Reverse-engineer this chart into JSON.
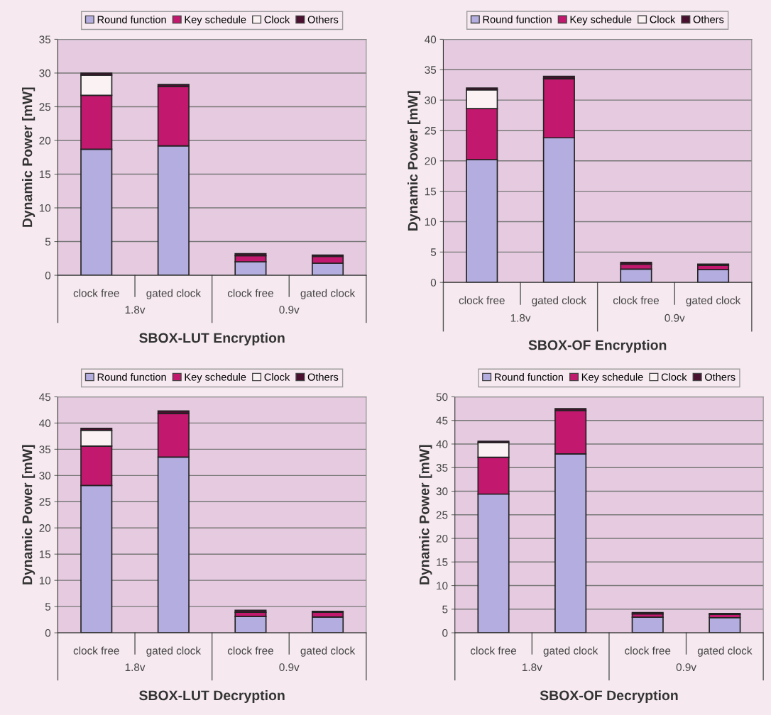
{
  "chart_data": [
    {
      "type": "bar",
      "stacked": true,
      "xlabel": "SBOX-LUT Encryption",
      "ylabel": "Dynamic Power [mW]",
      "categories": [
        "clock free",
        "gated clock",
        "clock free",
        "gated clock"
      ],
      "annotations": [
        "1.8v",
        "0.9v"
      ],
      "ylim": [
        0,
        35
      ],
      "yticks": [
        0,
        5,
        10,
        15,
        20,
        25,
        30,
        35
      ],
      "grid": "y",
      "legend": "top",
      "series": [
        {
          "name": "Round function",
          "color": "#b4aee0",
          "values": [
            18.7,
            19.2,
            2.0,
            1.8
          ]
        },
        {
          "name": "Key schedule",
          "color": "#c2186e",
          "values": [
            8.0,
            8.8,
            0.9,
            1.0
          ]
        },
        {
          "name": "Clock",
          "color": "#fbf3f3",
          "values": [
            3.0,
            0,
            0,
            0
          ]
        },
        {
          "name": "Others",
          "color": "#4a1030",
          "values": [
            0.3,
            0.3,
            0.3,
            0.2
          ]
        }
      ]
    },
    {
      "type": "bar",
      "stacked": true,
      "xlabel": "SBOX-OF Encryption",
      "ylabel": "Dynamic Power [mW]",
      "categories": [
        "clock free",
        "gated clock",
        "clock free",
        "gated clock"
      ],
      "annotations": [
        "1.8v",
        "0.9v"
      ],
      "ylim": [
        0,
        40
      ],
      "yticks": [
        0,
        5,
        10,
        15,
        20,
        25,
        30,
        35,
        40
      ],
      "grid": "y",
      "legend": "top",
      "series": [
        {
          "name": "Round function",
          "color": "#b4aee0",
          "values": [
            20.2,
            23.8,
            2.2,
            2.1
          ]
        },
        {
          "name": "Key schedule",
          "color": "#c2186e",
          "values": [
            8.4,
            9.7,
            0.8,
            0.7
          ]
        },
        {
          "name": "Clock",
          "color": "#fbf3f3",
          "values": [
            3.1,
            0,
            0,
            0
          ]
        },
        {
          "name": "Others",
          "color": "#4a1030",
          "values": [
            0.3,
            0.4,
            0.3,
            0.2
          ]
        }
      ]
    },
    {
      "type": "bar",
      "stacked": true,
      "xlabel": "SBOX-LUT Decryption",
      "ylabel": "Dynamic Power [mW]",
      "categories": [
        "clock free",
        "gated clock",
        "clock free",
        "gated clock"
      ],
      "annotations": [
        "1.8v",
        "0.9v"
      ],
      "ylim": [
        0,
        45
      ],
      "yticks": [
        0,
        5,
        10,
        15,
        20,
        25,
        30,
        35,
        40,
        45
      ],
      "grid": "y",
      "legend": "top",
      "series": [
        {
          "name": "Round function",
          "color": "#b4aee0",
          "values": [
            28.1,
            33.5,
            3.1,
            3.0
          ]
        },
        {
          "name": "Key schedule",
          "color": "#c2186e",
          "values": [
            7.5,
            8.3,
            0.8,
            0.9
          ]
        },
        {
          "name": "Clock",
          "color": "#fbf3f3",
          "values": [
            3.0,
            0,
            0,
            0
          ]
        },
        {
          "name": "Others",
          "color": "#4a1030",
          "values": [
            0.4,
            0.5,
            0.4,
            0.2
          ]
        }
      ]
    },
    {
      "type": "bar",
      "stacked": true,
      "xlabel": "SBOX-OF Decryption",
      "ylabel": "Dynamic Power [mW]",
      "categories": [
        "clock free",
        "gated clock",
        "clock free",
        "gated clock"
      ],
      "annotations": [
        "1.8v",
        "0.9v"
      ],
      "ylim": [
        0,
        50
      ],
      "yticks": [
        0,
        5,
        10,
        15,
        20,
        25,
        30,
        35,
        40,
        45,
        50
      ],
      "grid": "y",
      "legend": "top",
      "series": [
        {
          "name": "Round function",
          "color": "#b4aee0",
          "values": [
            29.4,
            37.9,
            3.3,
            3.2
          ]
        },
        {
          "name": "Key schedule",
          "color": "#c2186e",
          "values": [
            7.8,
            9.2,
            0.7,
            0.7
          ]
        },
        {
          "name": "Clock",
          "color": "#fbf3f3",
          "values": [
            3.1,
            0,
            0,
            0
          ]
        },
        {
          "name": "Others",
          "color": "#4a1030",
          "values": [
            0.3,
            0.4,
            0.3,
            0.2
          ]
        }
      ]
    }
  ]
}
